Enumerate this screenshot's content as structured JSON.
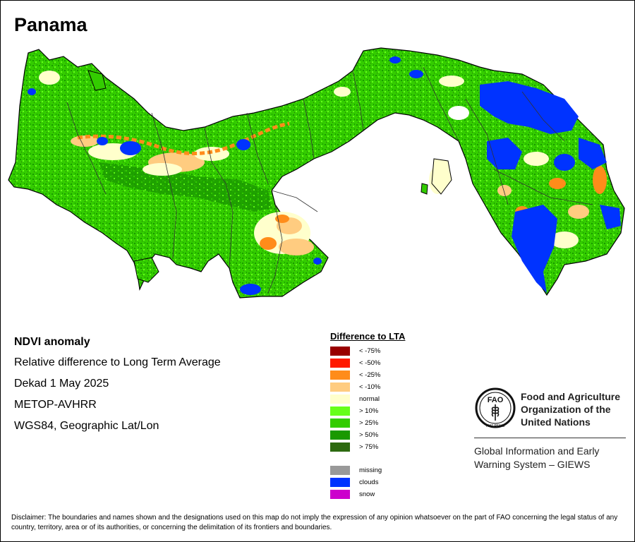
{
  "map": {
    "country": "Panama",
    "title": "NDVI anomaly",
    "subtitle": "Relative difference to Long Term Average",
    "period": "Dekad 1 May 2025",
    "sensor": "METOP-AVHRR",
    "projection": "WGS84, Geographic Lat/Lon"
  },
  "legend": {
    "title": "Difference to LTA",
    "items": [
      {
        "label": "< -75%",
        "color": "#990000"
      },
      {
        "label": "< -50%",
        "color": "#ff1a00"
      },
      {
        "label": "< -25%",
        "color": "#ff8c1a"
      },
      {
        "label": "< -10%",
        "color": "#ffcc80"
      },
      {
        "label": "normal",
        "color": "#ffffcc"
      },
      {
        "label": "> 10%",
        "color": "#66ff1a"
      },
      {
        "label": "> 25%",
        "color": "#33cc00"
      },
      {
        "label": "> 50%",
        "color": "#1a9900"
      },
      {
        "label": "> 75%",
        "color": "#2d6a10"
      }
    ],
    "extra": [
      {
        "label": "missing",
        "color": "#999999"
      },
      {
        "label": "clouds",
        "color": "#0033ff"
      },
      {
        "label": "snow",
        "color": "#cc00cc"
      }
    ]
  },
  "logo": {
    "letters": "FAO",
    "motto": "FIAT PANIS",
    "org_line1": "Food and Agriculture",
    "org_line2": "Organization of the",
    "org_line3": "United Nations",
    "system_line1": "Global Information and Early",
    "system_line2": "Warning System – GIEWS"
  },
  "disclaimer": "Disclaimer: The boundaries and names shown and the designations used on this map do not imply the expression of any opinion whatsoever on the part of FAO concerning the legal status of any country, territory, area or of its authorities, or concerning the delimitation of its frontiers and boundaries."
}
